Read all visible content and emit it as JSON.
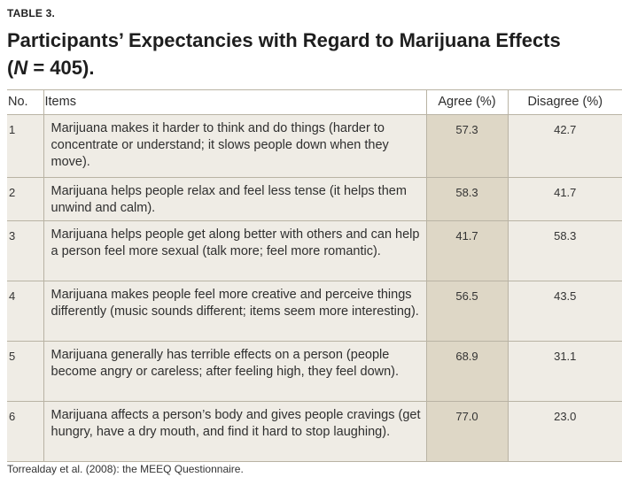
{
  "table_label": "TABLE 3.",
  "title": {
    "main": "Participants’ Expectancies with Regard to Marijuana Effects",
    "open": "(",
    "n_symbol": "N",
    "n_value": " = 405)."
  },
  "columns": {
    "no": "No.",
    "items": "Items",
    "agree": "Agree (%)",
    "disagree": "Disagree (%)"
  },
  "rows": [
    {
      "no": "1",
      "item": "Marijuana makes it harder to think and do things (harder to concentrate or understand; it slows people down when they move).",
      "agree": "57.3",
      "disagree": "42.7"
    },
    {
      "no": "2",
      "item": "Marijuana helps people relax and feel less tense (it helps them unwind and calm).",
      "agree": "58.3",
      "disagree": "41.7"
    },
    {
      "no": "3",
      "item": "Marijuana helps people get along better with others and can help a person feel more sexual (talk more; feel more romantic).",
      "agree": "41.7",
      "disagree": "58.3"
    },
    {
      "no": "4",
      "item": "Marijuana makes people feel more creative and perceive things differently (music sounds different; items seem more interesting).",
      "agree": "56.5",
      "disagree": "43.5"
    },
    {
      "no": "5",
      "item": "Marijuana generally has terrible effects on a person (people become angry or careless; after feeling high, they feel down).",
      "agree": "68.9",
      "disagree": "31.1"
    },
    {
      "no": "6",
      "item": "Marijuana affects a person’s body and gives people cravings (get hungry, have a dry mouth, and find it hard to stop laughing).",
      "agree": "77.0",
      "disagree": "23.0"
    }
  ],
  "footnote": "Torrealday et al. (2008): the MEEQ Questionnaire."
}
